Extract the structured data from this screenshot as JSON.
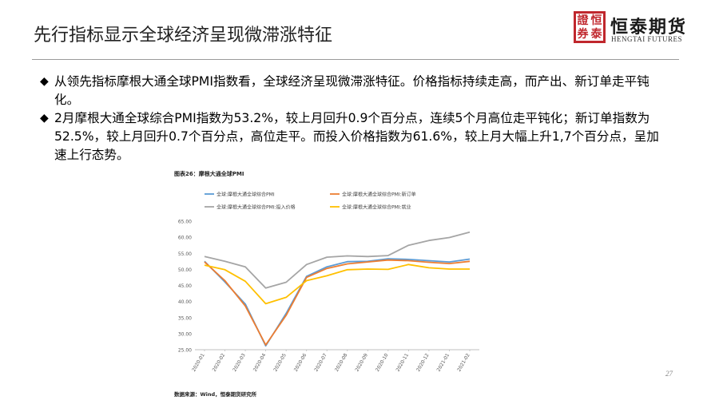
{
  "slide": {
    "title": "先行指标显示全球经济呈现微滞涨特征",
    "page_number": "27"
  },
  "logo": {
    "seal_chars": [
      "證",
      "恒",
      "券",
      "泰"
    ],
    "name": "恒泰期货",
    "subtitle": "HENGTAI FUTURES"
  },
  "bullets": [
    "从领先指标摩根大通全球PMI指数看，全球经济呈现微滞涨特征。价格指标持续走高，而产出、新订单走平钝化。",
    "2月摩根大通全球综合PMI指数为53.2%，较上月回升0.9个百分点，连续5个月高位走平钝化；新订单指数为52.5%，较上月回升0.7个百分点，高位走平。而投入价格指数为61.6%，较上月大幅上升1,7个百分点，呈加速上行态势。"
  ],
  "bullet_marker": "◆",
  "chart": {
    "figure_title": "图表26：摩根大通全球PMI",
    "source": "数据来源：Wind，恒泰期货研究所"
  },
  "chart_data": {
    "type": "line",
    "x": [
      "2020-01",
      "2020-02",
      "2020-03",
      "2020-04",
      "2020-05",
      "2020-06",
      "2020-07",
      "2020-08",
      "2020-09",
      "2020-10",
      "2020-11",
      "2020-12",
      "2021-01",
      "2021-02"
    ],
    "ylim": [
      25,
      65
    ],
    "yticks": [
      "25.00",
      "30.00",
      "35.00",
      "40.00",
      "45.00",
      "50.00",
      "55.00",
      "60.00",
      "65.00"
    ],
    "grid": false,
    "legend_position": "top",
    "series": [
      {
        "name": "全球:摩根大通全球综合PMI",
        "color": "#5b9bd5",
        "values": [
          52.5,
          46.1,
          39.2,
          26.2,
          36.3,
          47.8,
          50.8,
          52.4,
          52.5,
          53.3,
          53.1,
          52.7,
          52.3,
          53.2
        ]
      },
      {
        "name": "全球:摩根大通全球综合PMI:新订单",
        "color": "#ed7d31",
        "values": [
          52.3,
          46.5,
          38.6,
          26.5,
          35.7,
          47.5,
          50.3,
          51.7,
          52.3,
          52.9,
          52.7,
          52.2,
          51.8,
          52.5
        ]
      },
      {
        "name": "全球:摩根大通全球综合PMI:投入价格",
        "color": "#a5a5a5",
        "values": [
          54.0,
          52.5,
          50.8,
          44.2,
          46.0,
          51.5,
          53.8,
          54.2,
          54.0,
          54.3,
          57.5,
          59.0,
          59.9,
          61.6
        ]
      },
      {
        "name": "全球:摩根大通全球综合PMI:就业",
        "color": "#ffc000",
        "values": [
          51.3,
          49.9,
          46.3,
          39.3,
          41.3,
          46.5,
          48.0,
          49.9,
          50.1,
          50.0,
          51.5,
          50.5,
          50.1,
          50.1
        ]
      }
    ]
  }
}
